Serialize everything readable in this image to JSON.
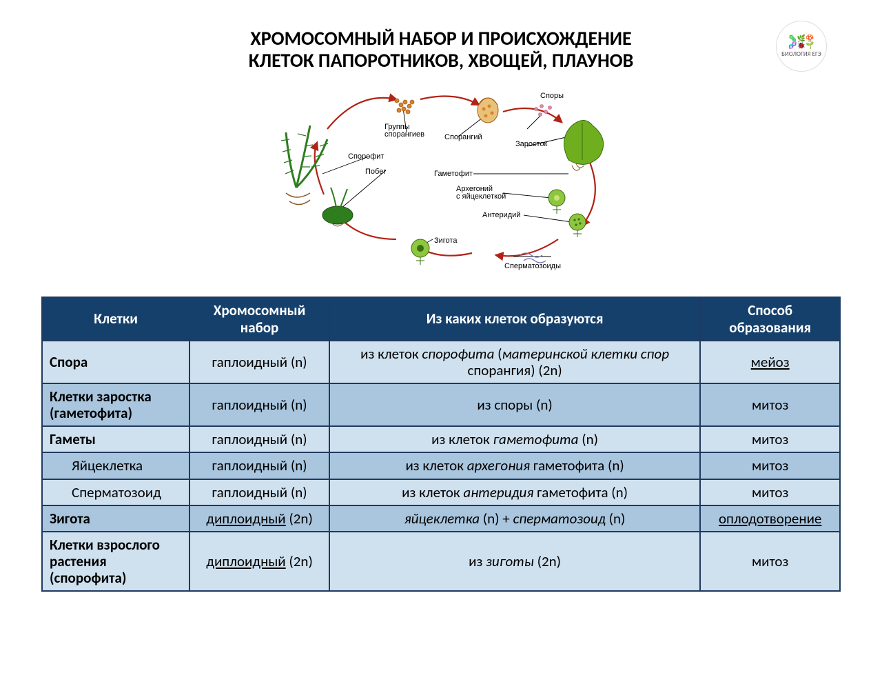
{
  "title": {
    "line1": "ХРОМОСОМНЫЙ НАБОР И ПРОИСХОЖДЕНИЕ",
    "line2": "КЛЕТОК ПАПОРОТНИКОВ, ХВОЩЕЙ, ПЛАУНОВ"
  },
  "logo": {
    "top_icons": "🦠🌿🍄",
    "mid_icons": "🧬🐞🌱",
    "label": "БИОЛОГИЯ ЕГЭ"
  },
  "diagram": {
    "labels": {
      "sporofit": "Спорофит",
      "pobeg": "Побег",
      "gruppy_sporangiev": "Группы\nспорангиев",
      "sporangiy": "Спорангий",
      "spory": "Споры",
      "zarostok": "Заросток",
      "gametofit": "Гаметофит",
      "arhegoniy": "Архегоний\nс яйцеклеткой",
      "anteridiy": "Антеридий",
      "spermatozoidy": "Сперматозоиды",
      "zigota": "Зигота"
    },
    "colors": {
      "arrow": "#b22217",
      "fern_green": "#2e7d1f",
      "moss_green": "#6fae1e",
      "leaf_green": "#8ec63f",
      "sporangia_orange": "#d9822b",
      "spore_pink": "#e28aa0",
      "root_brown": "#8a5a2b"
    }
  },
  "table": {
    "colors": {
      "header_bg": "#15406b",
      "cell_bg": "#cfe0ee",
      "cell_alt": "#a9c6de",
      "border": "#1f3a5f"
    },
    "columns": [
      "Клетки",
      "Хромосомный набор",
      "Из каких клеток образуются",
      "Способ образования"
    ],
    "rows": [
      {
        "alt": false,
        "cells": "Спора",
        "set_plain": "гаплоидный (n)",
        "origin": {
          "parts": [
            {
              "t": "из клеток "
            },
            {
              "t": "спорофита",
              "it": true
            },
            {
              "t": " ("
            },
            {
              "t": "материнской клетки спор",
              "it": true
            },
            {
              "t": " спорангия) (2n)"
            }
          ]
        },
        "method": {
          "text": "мейоз",
          "u": true
        }
      },
      {
        "alt": true,
        "cells": "Клетки заростка (гаметофита)",
        "set_plain": "гаплоидный (n)",
        "origin": {
          "parts": [
            {
              "t": "из споры (n)"
            }
          ]
        },
        "method": {
          "text": "митоз"
        }
      },
      {
        "alt": false,
        "cells": "Гаметы",
        "set_plain": "гаплоидный (n)",
        "origin": {
          "parts": [
            {
              "t": "из клеток "
            },
            {
              "t": "гаметофита",
              "it": true
            },
            {
              "t": " (n)"
            }
          ]
        },
        "method": {
          "text": "митоз"
        }
      },
      {
        "alt": true,
        "indent": true,
        "cells": "Яйцеклетка",
        "set_plain": "гаплоидный (n)",
        "origin": {
          "parts": [
            {
              "t": "из клеток "
            },
            {
              "t": "архегония",
              "it": true
            },
            {
              "t": " гаметофита (n)"
            }
          ]
        },
        "method": {
          "text": "митоз"
        }
      },
      {
        "alt": false,
        "indent": true,
        "cells": "Сперматозоид",
        "set_plain": "гаплоидный (n)",
        "origin": {
          "parts": [
            {
              "t": "из клеток "
            },
            {
              "t": "антеридия",
              "it": true
            },
            {
              "t": " гаметофита (n)"
            }
          ]
        },
        "method": {
          "text": "митоз"
        }
      },
      {
        "alt": true,
        "cells": "Зигота",
        "set": {
          "parts": [
            {
              "t": "диплоидный",
              "u": true
            },
            {
              "t": " (2n)"
            }
          ]
        },
        "origin": {
          "parts": [
            {
              "t": "яйцеклетка",
              "it": true
            },
            {
              "t": " (n) + "
            },
            {
              "t": "сперматозоид",
              "it": true
            },
            {
              "t": " (n)"
            }
          ]
        },
        "method": {
          "text": "оплодотворение",
          "u": true
        }
      },
      {
        "alt": false,
        "cells": "Клетки взрослого растения (спорофита)",
        "set": {
          "parts": [
            {
              "t": "диплоидный",
              "u": true
            },
            {
              "t": " (2n)"
            }
          ]
        },
        "origin": {
          "parts": [
            {
              "t": "из "
            },
            {
              "t": "зиготы",
              "it": true
            },
            {
              "t": " (2n)"
            }
          ]
        },
        "method": {
          "text": "митоз"
        }
      }
    ]
  }
}
